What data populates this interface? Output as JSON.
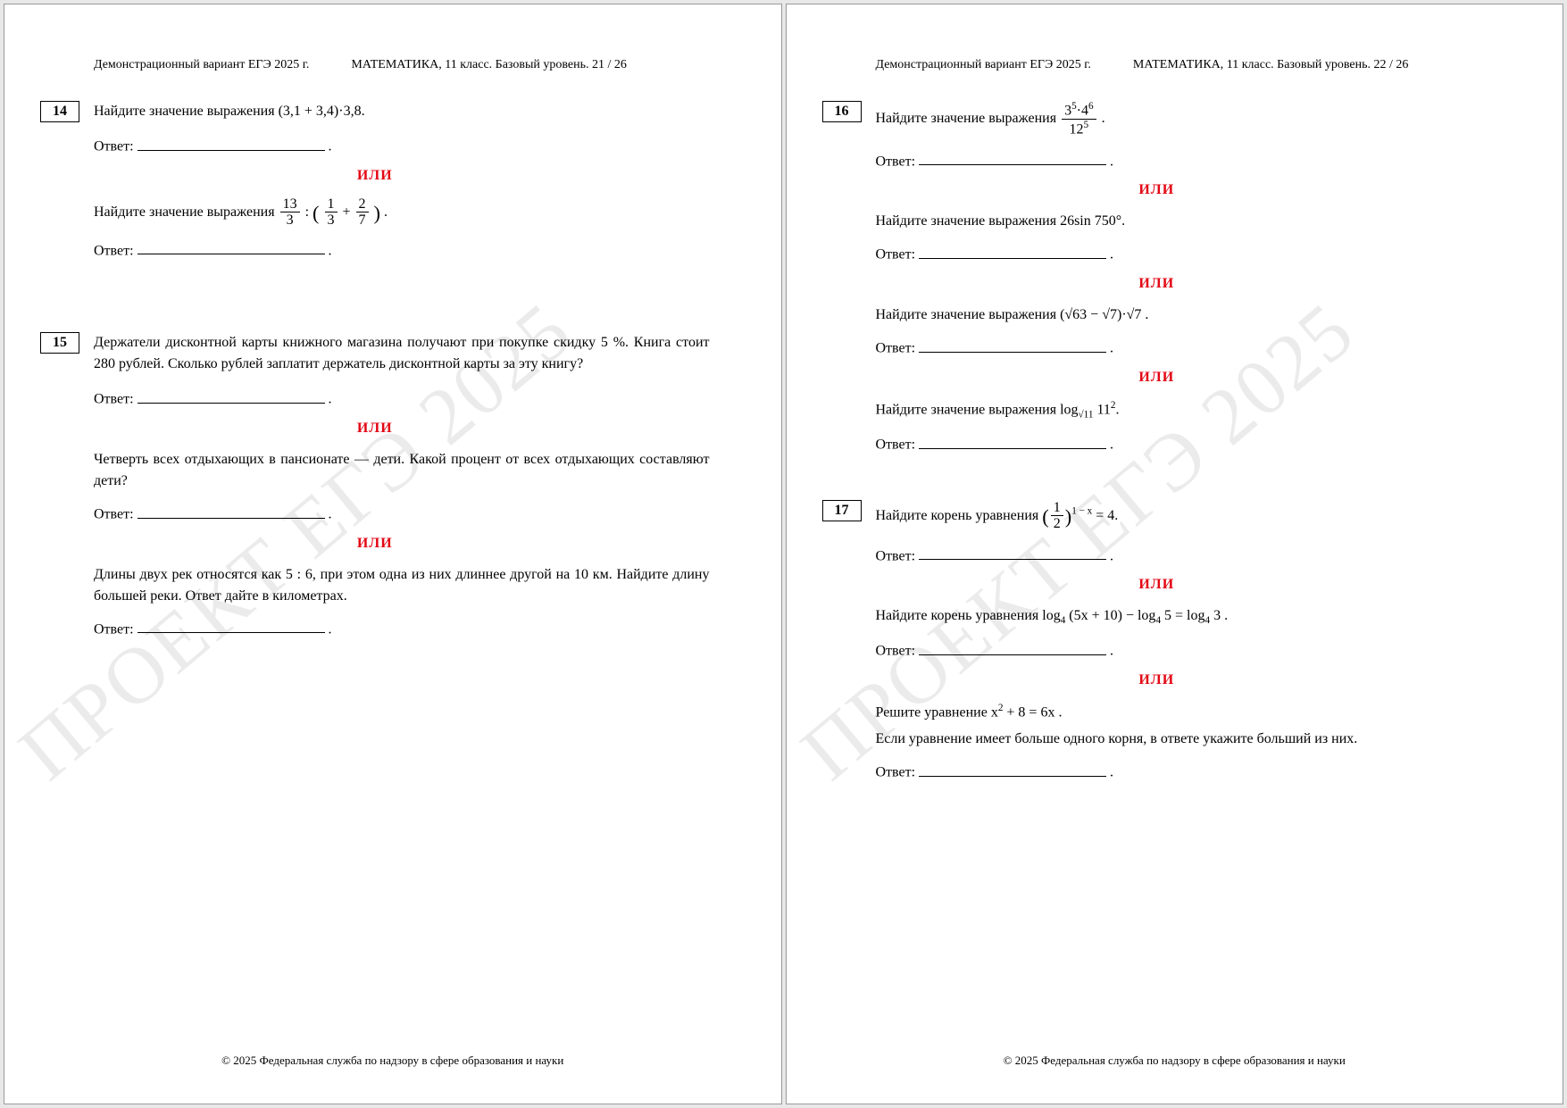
{
  "watermark": "ПРОЕКТ ЕГЭ 2025",
  "header": {
    "left": "Демонстрационный вариант ЕГЭ 2025 г.",
    "right_base": "МАТЕМАТИКА, 11 класс. Базовый уровень.",
    "page21": "21 / 26",
    "page22": "22 / 26"
  },
  "labels": {
    "answer": "Ответ:",
    "ili": "ИЛИ"
  },
  "p21": {
    "t14": {
      "num": "14",
      "q": "Найдите значение выражения (3,1 + 3,4)·3,8.",
      "alt_pre": "Найдите значение выражения ",
      "alt_frac1_num": "13",
      "alt_frac1_den": "3",
      "alt_mid": " : ",
      "alt_paren_frac2_num": "1",
      "alt_paren_frac2_den": "3",
      "alt_plus": " + ",
      "alt_frac3_num": "2",
      "alt_frac3_den": "7",
      "alt_post": "."
    },
    "t15": {
      "num": "15",
      "q": "Держатели дисконтной карты книжного магазина получают при покупке скидку 5 %. Книга стоит 280 рублей. Сколько рублей заплатит держатель дисконтной карты за эту книгу?",
      "alt1": "Четверть всех отдыхающих в пансионате — дети. Какой процент от всех отдыхающих составляют дети?",
      "alt2": "Длины двух рек относятся как 5 : 6, при этом одна из них длиннее другой на 10 км. Найдите длину большей реки. Ответ дайте в километрах."
    }
  },
  "p22": {
    "t16": {
      "num": "16",
      "q_pre": "Найдите значение выражения ",
      "frac_num_html": "3<sup>5</sup>·4<sup>6</sup>",
      "frac_den_html": "12<sup>5</sup>",
      "q_post": ".",
      "alt1": "Найдите значение выражения 26sin 750°.",
      "alt2": "Найдите значение выражения (√63 − √7)·√7 .",
      "alt3_pre": "Найдите значение выражения log",
      "alt3_sub": "√11",
      "alt3_arg": "11",
      "alt3_sup": "2",
      "alt3_post": "."
    },
    "t17": {
      "num": "17",
      "q_pre": "Найдите корень уравнения ",
      "frac_num": "1",
      "frac_den": "2",
      "exp": "1 − x",
      "q_post": " = 4.",
      "alt1_pre": "Найдите корень уравнения log",
      "alt1_a": "4",
      "alt1_mid1": "(5x + 10) − log",
      "alt1_mid2": " 5 = log",
      "alt1_post": " 3 .",
      "alt2a": "Решите уравнение  x",
      "alt2a_sup": "2",
      "alt2a_rest": " + 8 = 6x .",
      "alt2b": "Если уравнение имеет больше одного корня, в ответе укажите больший из них."
    }
  },
  "footer": "© 2025 Федеральная служба по надзору в сфере образования и науки"
}
